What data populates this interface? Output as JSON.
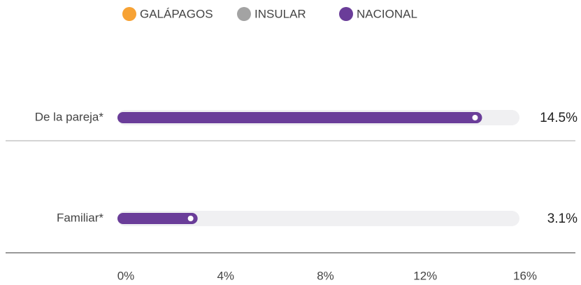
{
  "chart_data": {
    "type": "bar",
    "orientation": "horizontal",
    "categories": [
      "De la pareja*",
      "Familiar*"
    ],
    "series": [
      {
        "name": "GALÁPAGOS",
        "color": "#f7a234",
        "values": [
          null,
          null
        ]
      },
      {
        "name": "INSULAR",
        "color": "#a3a3a3",
        "values": [
          null,
          null
        ]
      },
      {
        "name": "NACIONAL",
        "color": "#6a3d99",
        "values": [
          14.5,
          3.1
        ],
        "value_labels": [
          "14.5%",
          "3.1%"
        ]
      }
    ],
    "xlim": [
      0,
      16
    ],
    "xticks": [
      {
        "value": 0,
        "label": "0%"
      },
      {
        "value": 4,
        "label": "4%"
      },
      {
        "value": 8,
        "label": "8%"
      },
      {
        "value": 12,
        "label": "12%"
      },
      {
        "value": 16,
        "label": "16%"
      }
    ],
    "legend": "top"
  }
}
